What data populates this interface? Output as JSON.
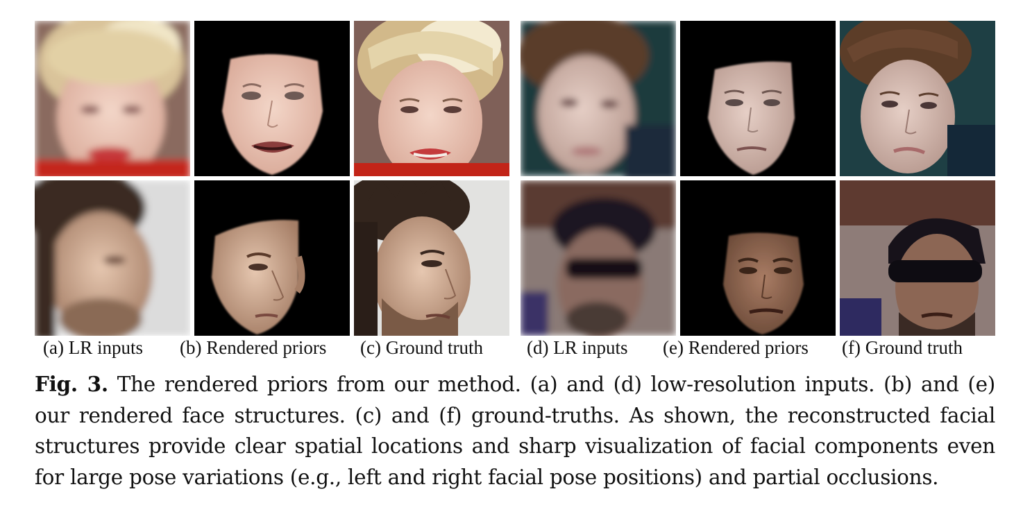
{
  "subfigure_captions": [
    "(a) LR inputs",
    "(b) Rendered priors",
    "(c) Ground truth",
    "(d) LR inputs",
    "(e) Rendered priors",
    "(f) Ground truth"
  ],
  "figure_caption": {
    "label": "Fig. 3.",
    "text": "The rendered priors from our method. (a) and (d) low-resolution inputs. (b) and (e) our rendered face structures. (c) and (f) ground-truths. As shown, the reconstructed facial structures provide clear spatial locations and sharp visualization of facial components even for large pose variations (e.g., left and right facial pose positions) and partial occlusions."
  },
  "tiles": [
    {
      "row": 1,
      "col": "a",
      "kind": "lr-input",
      "subject": "woman-blonde-smiling"
    },
    {
      "row": 1,
      "col": "b",
      "kind": "rendered-prior",
      "subject": "woman-blonde-smiling"
    },
    {
      "row": 1,
      "col": "c",
      "kind": "ground-truth",
      "subject": "woman-blonde-smiling"
    },
    {
      "row": 1,
      "col": "d",
      "kind": "lr-input",
      "subject": "young-man-brown-hair"
    },
    {
      "row": 1,
      "col": "e",
      "kind": "rendered-prior",
      "subject": "young-man-brown-hair"
    },
    {
      "row": 1,
      "col": "f",
      "kind": "ground-truth",
      "subject": "young-man-brown-hair"
    },
    {
      "row": 2,
      "col": "a",
      "kind": "lr-input",
      "subject": "man-profile-beard"
    },
    {
      "row": 2,
      "col": "b",
      "kind": "rendered-prior",
      "subject": "man-profile-beard"
    },
    {
      "row": 2,
      "col": "c",
      "kind": "ground-truth",
      "subject": "man-profile-beard"
    },
    {
      "row": 2,
      "col": "d",
      "kind": "lr-input",
      "subject": "man-cap-sunglasses"
    },
    {
      "row": 2,
      "col": "e",
      "kind": "rendered-prior",
      "subject": "man-cap-sunglasses"
    },
    {
      "row": 2,
      "col": "f",
      "kind": "ground-truth",
      "subject": "man-cap-sunglasses"
    }
  ]
}
